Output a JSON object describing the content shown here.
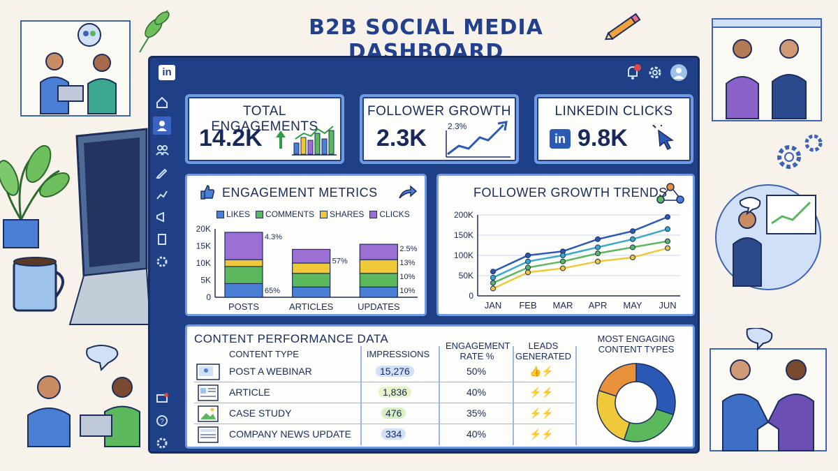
{
  "page_title": "B2B SOCIAL MEDIA DASHBOARD",
  "app": {
    "logo_text": "in",
    "notification_count": "1"
  },
  "kpis": [
    {
      "title": "TOTAL ENGAGEMENTS",
      "value": "14.2K",
      "trend": "up"
    },
    {
      "title": "FOLLOWER GROWTH",
      "value": "2.3K",
      "sparkline_label": "2.3%"
    },
    {
      "title": "LINKEDIN CLICKS",
      "value": "9.8K",
      "badge": "in"
    }
  ],
  "engagement": {
    "title": "ENGAGEMENT METRICS",
    "legend": [
      {
        "label": "LIKES",
        "color": "#4a7fd6"
      },
      {
        "label": "COMMENTS",
        "color": "#5cb85c"
      },
      {
        "label": "SHARES",
        "color": "#f0c93b"
      },
      {
        "label": "CLICKS",
        "color": "#9b6fd4"
      }
    ]
  },
  "follower_trends": {
    "title": "FOLLOWER GROWTH TRENDS"
  },
  "table": {
    "title": "CONTENT PERFORMANCE DATA",
    "headers": {
      "type": "CONTENT TYPE",
      "impressions": "IMPRESSIONS",
      "rate": "ENGAGEMENT RATE %",
      "leads": "LEADS GENERATED"
    },
    "rows": [
      {
        "type": "POST A WEBINAR",
        "impressions": "15,276",
        "rate": "50%",
        "leads": "👍⚡"
      },
      {
        "type": "ARTICLE",
        "impressions": "1,836",
        "rate": "40%",
        "leads": "⚡⚡"
      },
      {
        "type": "CASE STUDY",
        "impressions": "476",
        "rate": "35%",
        "leads": "⚡⚡"
      },
      {
        "type": "COMPANY NEWS UPDATE",
        "impressions": "334",
        "rate": "40%",
        "leads": "⚡⚡"
      }
    ],
    "donut_title": "MOST ENGAGING CONTENT TYPES"
  },
  "chart_data": [
    {
      "type": "bar",
      "stacked": true,
      "categories": [
        "POSTS",
        "ARTICLES",
        "UPDATES"
      ],
      "series": [
        {
          "name": "LIKES",
          "values": [
            4000,
            3000,
            3000
          ]
        },
        {
          "name": "COMMENTS",
          "values": [
            5000,
            4000,
            4000
          ]
        },
        {
          "name": "SHARES",
          "values": [
            2000,
            3000,
            4000
          ]
        },
        {
          "name": "CLICKS",
          "values": [
            8000,
            4000,
            4500
          ]
        }
      ],
      "yticks": [
        "0",
        "5K",
        "10K",
        "15K",
        "20K"
      ],
      "ylim": [
        0,
        20000
      ],
      "annotations": [
        {
          "category": "POSTS",
          "labels": [
            "4.3%",
            "65%"
          ]
        },
        {
          "category": "ARTICLES",
          "labels": [
            "57%"
          ]
        },
        {
          "category": "UPDATES",
          "labels": [
            "2.5%",
            "13%",
            "10%",
            "10%"
          ]
        }
      ]
    },
    {
      "type": "line",
      "x": [
        "JAN",
        "FEB",
        "MAR",
        "APR",
        "MAY",
        "JUN"
      ],
      "series": [
        {
          "color": "#2b59b6",
          "values": [
            60000,
            100000,
            110000,
            140000,
            160000,
            195000
          ]
        },
        {
          "color": "#3aa9c9",
          "values": [
            45000,
            85000,
            100000,
            120000,
            140000,
            165000
          ]
        },
        {
          "color": "#5cb85c",
          "values": [
            32000,
            70000,
            85000,
            105000,
            120000,
            135000
          ]
        },
        {
          "color": "#f0c93b",
          "values": [
            18000,
            58000,
            68000,
            85000,
            95000,
            118000
          ]
        }
      ],
      "yticks": [
        "0",
        "50K",
        "100K",
        "150K",
        "200K"
      ],
      "ylim": [
        0,
        200000
      ],
      "grid": true
    },
    {
      "type": "pie",
      "donut": true,
      "values": [
        30,
        25,
        25,
        20
      ],
      "colors": [
        "#2b59b6",
        "#5cb85c",
        "#f0c93b",
        "#e8913a"
      ]
    }
  ]
}
